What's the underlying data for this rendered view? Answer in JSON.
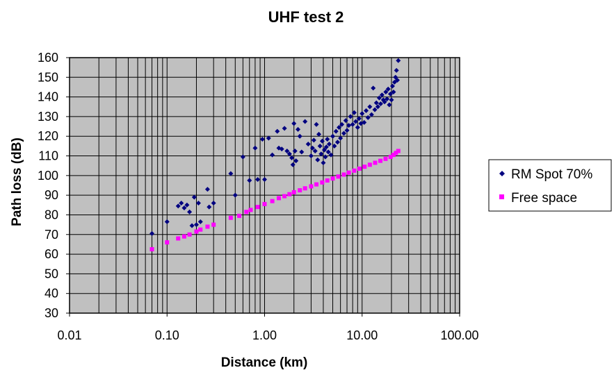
{
  "chart_data": {
    "type": "scatter",
    "title": "UHF test 2",
    "xlabel": "Distance (km)",
    "ylabel": "Path loss (dB)",
    "x_scale": "log",
    "xlim": [
      0.01,
      100
    ],
    "ylim": [
      30,
      160
    ],
    "x_ticks": [
      "0.01",
      "0.10",
      "1.00",
      "10.00",
      "100.00"
    ],
    "y_ticks": [
      "30",
      "40",
      "50",
      "60",
      "70",
      "80",
      "90",
      "100",
      "110",
      "120",
      "130",
      "140",
      "150",
      "160"
    ],
    "grid": true,
    "legend_position": "right",
    "colors": {
      "plot_background": "#c0c0c0",
      "grid": "#000000",
      "rm_spot": "#000080",
      "free_space": "#ff00ff"
    },
    "series": [
      {
        "name": "RM Spot 70%",
        "marker": "diamond",
        "color": "#000080",
        "points": [
          [
            0.07,
            70.5
          ],
          [
            0.1,
            76.5
          ],
          [
            0.13,
            84.5
          ],
          [
            0.14,
            86
          ],
          [
            0.15,
            83.5
          ],
          [
            0.16,
            85
          ],
          [
            0.17,
            81.5
          ],
          [
            0.18,
            74.5
          ],
          [
            0.19,
            89
          ],
          [
            0.2,
            75
          ],
          [
            0.21,
            86
          ],
          [
            0.22,
            76.5
          ],
          [
            0.26,
            93
          ],
          [
            0.27,
            84
          ],
          [
            0.3,
            86
          ],
          [
            0.45,
            101
          ],
          [
            0.5,
            90
          ],
          [
            0.6,
            109.5
          ],
          [
            0.7,
            97.5
          ],
          [
            0.8,
            114
          ],
          [
            0.85,
            98
          ],
          [
            0.95,
            118.5
          ],
          [
            1.0,
            98
          ],
          [
            1.1,
            119
          ],
          [
            1.2,
            110.5
          ],
          [
            1.35,
            122.5
          ],
          [
            1.4,
            114
          ],
          [
            1.5,
            113.5
          ],
          [
            1.6,
            124
          ],
          [
            1.7,
            112.5
          ],
          [
            1.8,
            111
          ],
          [
            1.9,
            109
          ],
          [
            1.95,
            105.5
          ],
          [
            2.0,
            126.5
          ],
          [
            2.05,
            112.5
          ],
          [
            2.1,
            107.5
          ],
          [
            2.2,
            123.5
          ],
          [
            2.3,
            120
          ],
          [
            2.4,
            112
          ],
          [
            2.6,
            127.5
          ],
          [
            2.8,
            116
          ],
          [
            3.0,
            110
          ],
          [
            3.1,
            114
          ],
          [
            3.2,
            118
          ],
          [
            3.3,
            112.5
          ],
          [
            3.4,
            126
          ],
          [
            3.5,
            108
          ],
          [
            3.6,
            121
          ],
          [
            3.7,
            115
          ],
          [
            3.8,
            111
          ],
          [
            3.9,
            117.5
          ],
          [
            4.0,
            106.5
          ],
          [
            4.1,
            113
          ],
          [
            4.2,
            109.5
          ],
          [
            4.3,
            114.5
          ],
          [
            4.4,
            118.5
          ],
          [
            4.5,
            112
          ],
          [
            4.6,
            116
          ],
          [
            4.8,
            110.5
          ],
          [
            5.0,
            120
          ],
          [
            5.2,
            115
          ],
          [
            5.4,
            122.5
          ],
          [
            5.6,
            117
          ],
          [
            5.8,
            124.5
          ],
          [
            6.0,
            119
          ],
          [
            6.2,
            126
          ],
          [
            6.5,
            121.5
          ],
          [
            6.8,
            128
          ],
          [
            7.0,
            123
          ],
          [
            7.3,
            125.5
          ],
          [
            7.6,
            130
          ],
          [
            8.0,
            126
          ],
          [
            8.3,
            132
          ],
          [
            8.6,
            127.5
          ],
          [
            9.0,
            124.5
          ],
          [
            9.3,
            129
          ],
          [
            9.7,
            126.5
          ],
          [
            10.0,
            131.5
          ],
          [
            10.5,
            127
          ],
          [
            11.0,
            133
          ],
          [
            11.5,
            129.5
          ],
          [
            12.0,
            135
          ],
          [
            12.5,
            131
          ],
          [
            13.0,
            144.5
          ],
          [
            13.5,
            133.5
          ],
          [
            14.0,
            137
          ],
          [
            14.5,
            135
          ],
          [
            15.0,
            139.5
          ],
          [
            15.5,
            136.5
          ],
          [
            16.0,
            141
          ],
          [
            16.5,
            138.5
          ],
          [
            17.0,
            137.5
          ],
          [
            17.5,
            142.5
          ],
          [
            18.0,
            139
          ],
          [
            18.5,
            144
          ],
          [
            19.0,
            136
          ],
          [
            19.5,
            141.5
          ],
          [
            20.0,
            138.5
          ],
          [
            20.5,
            145.5
          ],
          [
            21.0,
            142.5
          ],
          [
            21.5,
            147.5
          ],
          [
            22.0,
            150
          ],
          [
            22.5,
            153.5
          ],
          [
            23.0,
            148.5
          ],
          [
            23.5,
            158.5
          ]
        ]
      },
      {
        "name": "Free space",
        "marker": "square",
        "color": "#ff00ff",
        "points": [
          [
            0.07,
            62.5
          ],
          [
            0.1,
            66
          ],
          [
            0.13,
            68
          ],
          [
            0.15,
            69
          ],
          [
            0.17,
            70
          ],
          [
            0.2,
            71.5
          ],
          [
            0.22,
            72.5
          ],
          [
            0.26,
            74
          ],
          [
            0.3,
            75
          ],
          [
            0.45,
            78.5
          ],
          [
            0.55,
            79.5
          ],
          [
            0.65,
            81.5
          ],
          [
            0.72,
            82.5
          ],
          [
            0.85,
            84
          ],
          [
            1.0,
            85.5
          ],
          [
            1.2,
            87
          ],
          [
            1.4,
            88.5
          ],
          [
            1.6,
            89.5
          ],
          [
            1.8,
            90.5
          ],
          [
            2.0,
            91.5
          ],
          [
            2.3,
            92.5
          ],
          [
            2.6,
            93.5
          ],
          [
            3.0,
            94.5
          ],
          [
            3.4,
            95.5
          ],
          [
            3.9,
            96.5
          ],
          [
            4.4,
            97.5
          ],
          [
            5.0,
            98.5
          ],
          [
            5.7,
            99.5
          ],
          [
            6.5,
            100.5
          ],
          [
            7.3,
            101.5
          ],
          [
            8.3,
            102.5
          ],
          [
            9.4,
            103.5
          ],
          [
            10.6,
            104.5
          ],
          [
            12.0,
            105.5
          ],
          [
            13.6,
            106.5
          ],
          [
            15.4,
            107.5
          ],
          [
            17.4,
            108.5
          ],
          [
            19.6,
            109.5
          ],
          [
            21.0,
            110.5
          ],
          [
            22.2,
            111.5
          ],
          [
            23.5,
            112.5
          ]
        ]
      }
    ]
  }
}
